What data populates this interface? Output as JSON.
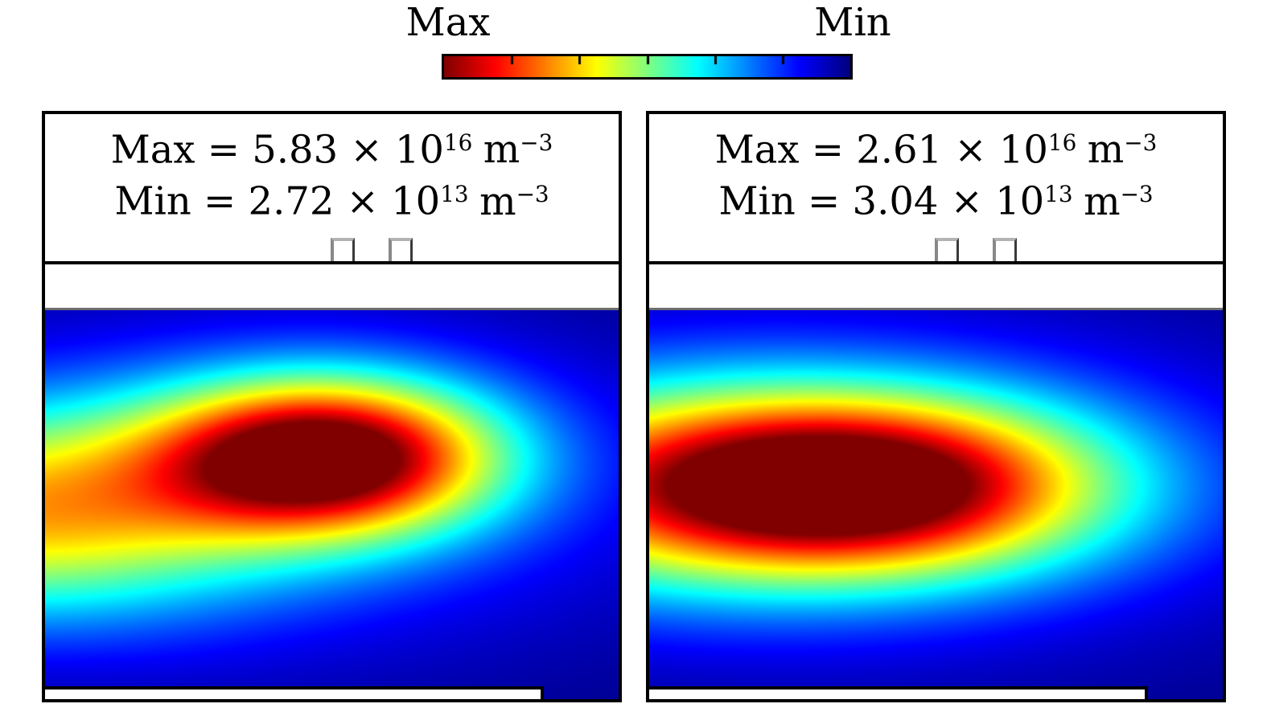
{
  "figure": {
    "description": "Two-panel simulated density heatmap comparison with shared reversed-jet colorbar",
    "units": "m^-3"
  },
  "colorbar": {
    "left_label": "Max",
    "right_label": "Min",
    "tick_count": 5,
    "colormap": "jet",
    "direction": "max-left-to-min-right",
    "border_color": "#000000"
  },
  "chart_data": {
    "type": "heatmap",
    "colormap": "jet",
    "legend_position": "top",
    "panels": [
      {
        "name": "left-panel",
        "stats": {
          "max": {
            "pre": "Max = 5.83 × 10",
            "exp": "16",
            "unit": "m",
            "unit_exp": "−3",
            "value": "5.83e16 m^-3"
          },
          "min": {
            "pre": "Min = 2.72 × 10",
            "exp": "13",
            "unit": "m",
            "unit_exp": "−3",
            "value": "2.72e13 m^-3"
          }
        },
        "field": {
          "note": "normalized density field, sum of gaussians, v=1 maps to Max (dark red), v=0 to Min (dark blue)",
          "gaussians": [
            {
              "a": 0.95,
              "cx": 0.49,
              "cy": 0.375,
              "sx": 0.21,
              "sy": 0.14
            },
            {
              "a": 0.58,
              "cx": -0.08,
              "cy": 0.52,
              "sx": 0.33,
              "sy": 0.19
            },
            {
              "a": 0.18,
              "cx": 0.4,
              "cy": 0.45,
              "sx": 0.55,
              "sy": 0.32
            }
          ]
        }
      },
      {
        "name": "right-panel",
        "stats": {
          "max": {
            "pre": "Max = 2.61 × 10",
            "exp": "16",
            "unit": "m",
            "unit_exp": "−3",
            "value": "2.61e16 m^-3"
          },
          "min": {
            "pre": "Min = 3.04 × 10",
            "exp": "13",
            "unit": "m",
            "unit_exp": "−3",
            "value": "3.04e13 m^-3"
          }
        },
        "field": {
          "note": "normalized density field, sum of gaussians",
          "gaussians": [
            {
              "a": 0.95,
              "cx": 0.36,
              "cy": 0.45,
              "sx": 0.3,
              "sy": 0.16
            },
            {
              "a": 0.36,
              "cx": -0.1,
              "cy": 0.45,
              "sx": 0.35,
              "sy": 0.21
            },
            {
              "a": 0.18,
              "cx": 0.4,
              "cy": 0.45,
              "sx": 0.55,
              "sy": 0.32
            }
          ]
        }
      }
    ]
  }
}
